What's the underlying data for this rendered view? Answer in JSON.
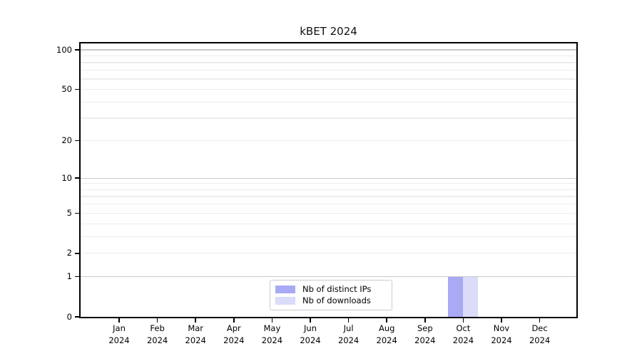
{
  "chart": {
    "title": "kBET 2024"
  },
  "legend": {
    "items": [
      {
        "label": "Nb of distinct IPs",
        "color": "#a9a9f5"
      },
      {
        "label": "Nb of downloads",
        "color": "#dbdbfa"
      }
    ]
  },
  "chart_data": {
    "type": "bar",
    "title": "kBET 2024",
    "categories": [
      "Jan 2024",
      "Feb 2024",
      "Mar 2024",
      "Apr 2024",
      "May 2024",
      "Jun 2024",
      "Jul 2024",
      "Aug 2024",
      "Sep 2024",
      "Oct 2024",
      "Nov 2024",
      "Dec 2024"
    ],
    "series": [
      {
        "name": "Nb of distinct IPs",
        "color": "#a9a9f5",
        "values": [
          0,
          0,
          0,
          0,
          0,
          0,
          0,
          0,
          0,
          1,
          0,
          0
        ]
      },
      {
        "name": "Nb of downloads",
        "color": "#dbdbfa",
        "values": [
          0,
          0,
          0,
          0,
          0,
          0,
          0,
          0,
          0,
          1,
          0,
          0
        ]
      }
    ],
    "xlabel": "",
    "ylabel": "",
    "y_axis": {
      "scale": "log10(1+x)",
      "ylim": [
        0,
        112
      ],
      "tick_labels": [
        "0",
        "1",
        "2",
        "5",
        "10",
        "20",
        "50",
        "100"
      ],
      "tick_values": [
        0,
        1,
        2,
        5,
        10,
        20,
        50,
        100
      ],
      "major_gridline_values": [
        1,
        10,
        100
      ],
      "minor_gridline_values": [
        2,
        3,
        4,
        5,
        6,
        7,
        8,
        9,
        20,
        30,
        40,
        50,
        60,
        70,
        80,
        90
      ]
    },
    "grid": true,
    "legend_position": "inside-bottom-center",
    "colors": {
      "major_grid": "#c9c9c9",
      "minor_grid": "#ececec",
      "axis": "#000000"
    }
  }
}
